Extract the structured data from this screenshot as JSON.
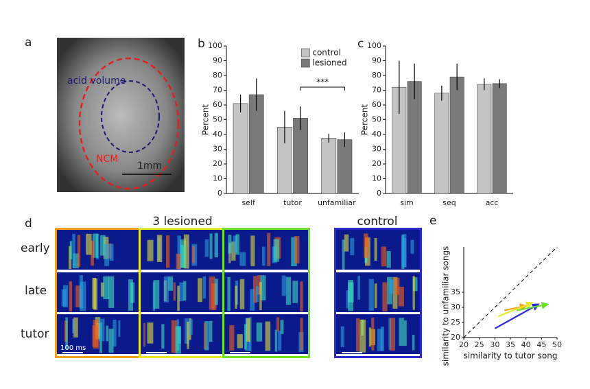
{
  "panels": {
    "a": {
      "label": "a",
      "acid_label": "acid volume",
      "ncm_label": "NCM",
      "scale": "1mm"
    },
    "d": {
      "label": "d",
      "lesioned_title": "3 lesioned",
      "control_title": "control",
      "rows": [
        "early",
        "late",
        "tutor"
      ],
      "scale": "100 ms"
    }
  },
  "chart_data": [
    {
      "type": "bar",
      "label": "b",
      "ylabel": "Percent",
      "categories": [
        "self",
        "tutor",
        "unfamiliar"
      ],
      "series": [
        {
          "name": "control",
          "color": "#c4c4c4",
          "values": [
            61,
            45,
            37.5
          ],
          "errors": [
            6,
            11,
            3
          ]
        },
        {
          "name": "lesioned",
          "color": "#7a7a7a",
          "values": [
            67,
            51,
            36.5
          ],
          "errors": [
            11,
            8,
            5
          ]
        }
      ],
      "annotation": "***",
      "ylim": [
        0,
        100
      ],
      "yticks": [
        0,
        10,
        20,
        30,
        40,
        50,
        60,
        70,
        80,
        90,
        100
      ],
      "legend": "top-right"
    },
    {
      "type": "bar",
      "label": "c",
      "ylabel": "Percent",
      "categories": [
        "sim",
        "seq",
        "acc"
      ],
      "series": [
        {
          "color": "#c4c4c4",
          "values": [
            72,
            68,
            74
          ],
          "errors": [
            18,
            5,
            4
          ]
        },
        {
          "color": "#7a7a7a",
          "values": [
            76,
            79,
            74.5
          ],
          "errors": [
            12,
            9,
            3
          ]
        }
      ],
      "ylim": [
        0,
        100
      ],
      "yticks": [
        0,
        10,
        20,
        30,
        40,
        50,
        60,
        70,
        80,
        90,
        100
      ]
    },
    {
      "type": "arrow",
      "label": "e",
      "xlabel": "similarity to tutor song",
      "ylabel": "similarity to unfamiliar songs",
      "series": [
        {
          "color": "#2a2ad0",
          "x": [
            30,
            44
          ],
          "values": [
            23,
            31
          ]
        },
        {
          "color": "#f0a020",
          "x": [
            33,
            40
          ],
          "values": [
            29,
            30.5
          ]
        },
        {
          "color": "#e8e830",
          "x": [
            31,
            42
          ],
          "values": [
            27,
            31.5
          ]
        },
        {
          "color": "#70e030",
          "x": [
            37,
            47
          ],
          "values": [
            29,
            31
          ]
        }
      ],
      "xlim": [
        20,
        50
      ],
      "ylim": [
        20,
        50
      ],
      "xticks": [
        20,
        25,
        30,
        35,
        40,
        45,
        50
      ],
      "yticks": [
        20,
        25,
        30,
        35
      ]
    }
  ]
}
